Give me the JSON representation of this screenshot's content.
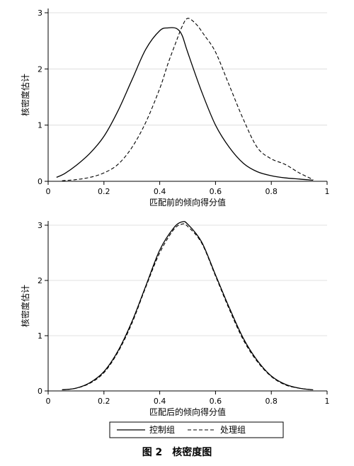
{
  "figure_caption": "图 2　核密度图",
  "legend": {
    "entries": [
      {
        "label": "控制组",
        "style": "solid"
      },
      {
        "label": "处理组",
        "style": "dashed"
      }
    ]
  },
  "chart_data": [
    {
      "type": "line",
      "xlabel": "匹配前的倾向得分值",
      "ylabel": "核密度估计",
      "xlim": [
        0,
        1
      ],
      "ylim": [
        0,
        3
      ],
      "x_ticks": [
        "0",
        "0.2",
        "0.4",
        "0.6",
        "0.8",
        "1"
      ],
      "x_tick_values": [
        0,
        0.2,
        0.4,
        0.6,
        0.8,
        1
      ],
      "y_ticks": [
        "0",
        "1",
        "2",
        "3"
      ],
      "y_tick_values": [
        0,
        1,
        2,
        3
      ],
      "grid": true,
      "series": [
        {
          "name": "控制组",
          "style": "solid",
          "x": [
            0.03,
            0.06,
            0.1,
            0.15,
            0.2,
            0.25,
            0.3,
            0.35,
            0.4,
            0.43,
            0.46,
            0.48,
            0.5,
            0.55,
            0.6,
            0.65,
            0.7,
            0.75,
            0.8,
            0.85,
            0.9,
            0.95
          ],
          "y": [
            0.07,
            0.14,
            0.28,
            0.5,
            0.8,
            1.25,
            1.8,
            2.35,
            2.68,
            2.73,
            2.72,
            2.6,
            2.3,
            1.6,
            1.0,
            0.6,
            0.32,
            0.17,
            0.1,
            0.06,
            0.04,
            0.02
          ]
        },
        {
          "name": "处理组",
          "style": "dashed",
          "x": [
            0.05,
            0.1,
            0.15,
            0.2,
            0.25,
            0.3,
            0.35,
            0.4,
            0.43,
            0.46,
            0.48,
            0.5,
            0.53,
            0.56,
            0.6,
            0.65,
            0.7,
            0.75,
            0.8,
            0.85,
            0.9,
            0.95
          ],
          "y": [
            0.01,
            0.03,
            0.07,
            0.15,
            0.3,
            0.6,
            1.05,
            1.65,
            2.1,
            2.5,
            2.75,
            2.9,
            2.8,
            2.6,
            2.3,
            1.7,
            1.1,
            0.6,
            0.4,
            0.3,
            0.15,
            0.03
          ]
        }
      ]
    },
    {
      "type": "line",
      "xlabel": "匹配后的倾向得分值",
      "ylabel": "核密度估计",
      "xlim": [
        0,
        1
      ],
      "ylim": [
        0,
        3
      ],
      "x_ticks": [
        "0",
        "0.2",
        "0.4",
        "0.6",
        "0.8",
        "1"
      ],
      "x_tick_values": [
        0,
        0.2,
        0.4,
        0.6,
        0.8,
        1
      ],
      "y_ticks": [
        "0",
        "1",
        "2",
        "3"
      ],
      "y_tick_values": [
        0,
        1,
        2,
        3
      ],
      "grid": true,
      "series": [
        {
          "name": "控制组",
          "style": "solid",
          "x": [
            0.05,
            0.1,
            0.15,
            0.2,
            0.25,
            0.3,
            0.35,
            0.4,
            0.45,
            0.48,
            0.5,
            0.55,
            0.6,
            0.65,
            0.7,
            0.75,
            0.8,
            0.85,
            0.9,
            0.95
          ],
          "y": [
            0.02,
            0.05,
            0.15,
            0.35,
            0.72,
            1.25,
            1.9,
            2.55,
            2.95,
            3.06,
            3.02,
            2.7,
            2.1,
            1.5,
            0.95,
            0.55,
            0.27,
            0.12,
            0.05,
            0.02
          ]
        },
        {
          "name": "处理组",
          "style": "dashed",
          "x": [
            0.05,
            0.1,
            0.15,
            0.2,
            0.25,
            0.3,
            0.35,
            0.4,
            0.45,
            0.48,
            0.5,
            0.55,
            0.6,
            0.65,
            0.7,
            0.75,
            0.8,
            0.85,
            0.9,
            0.95
          ],
          "y": [
            0.02,
            0.05,
            0.14,
            0.33,
            0.7,
            1.22,
            1.88,
            2.5,
            2.92,
            3.02,
            2.98,
            2.68,
            2.08,
            1.47,
            0.92,
            0.53,
            0.26,
            0.11,
            0.05,
            0.02
          ]
        }
      ]
    }
  ]
}
